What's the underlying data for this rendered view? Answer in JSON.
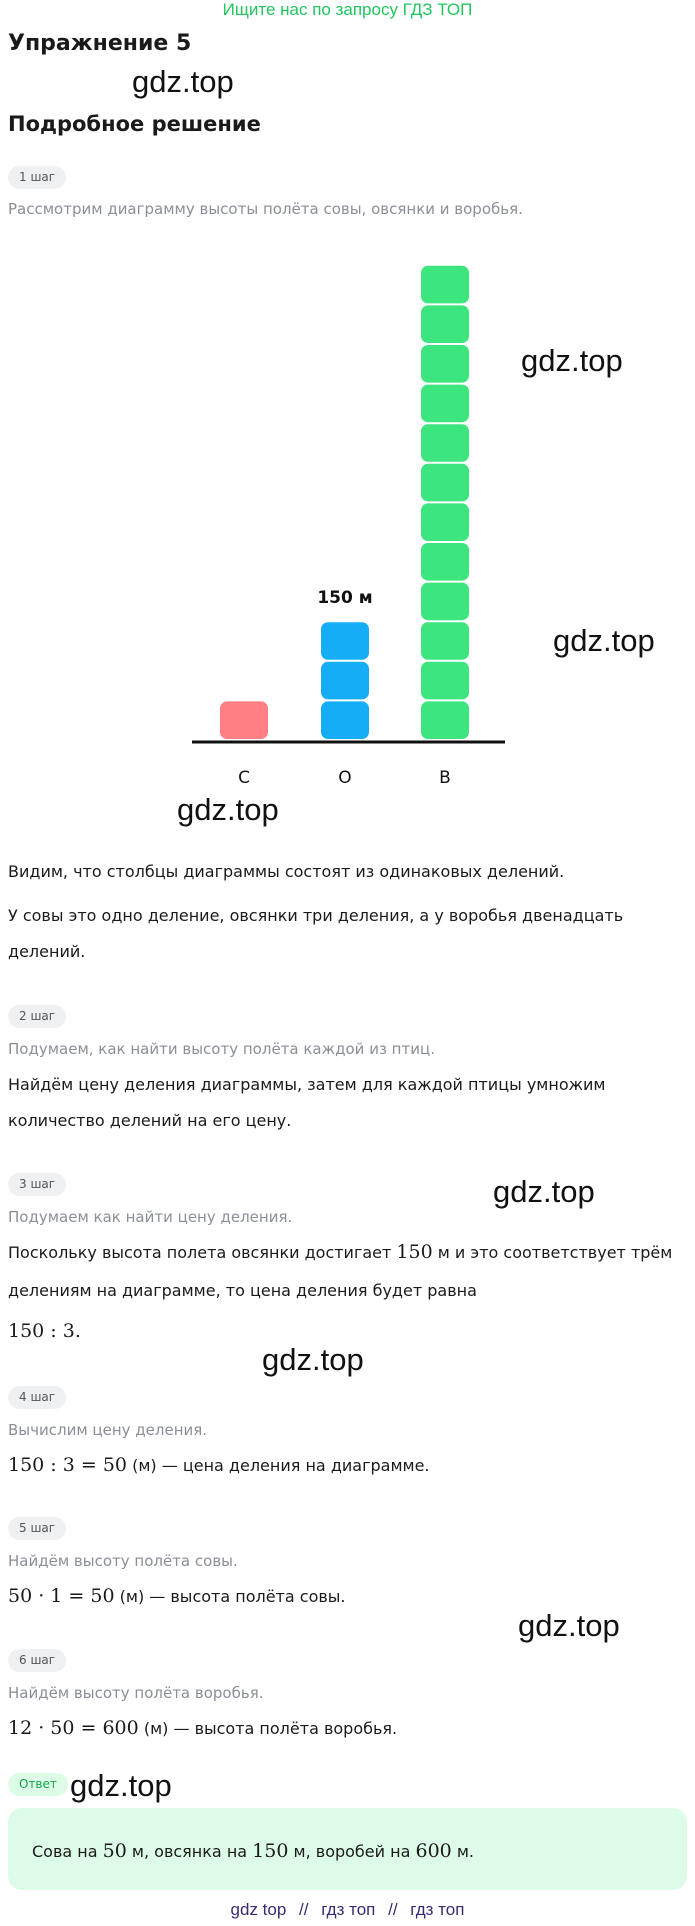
{
  "banner": "Ищите нас по запросу ГДЗ ТОП",
  "title": "Упражнение 5",
  "subtitle": "Подробное решение",
  "watermark": "gdz.top",
  "steps": [
    {
      "badge": "1 шаг",
      "hint": "Рассмотрим диаграмму высоты полёта совы, овсянки и воробья."
    },
    {
      "badge": "2 шаг",
      "hint": "Подумаем, как найти высоту полёта каждой из птиц."
    },
    {
      "badge": "3 шаг",
      "hint": "Подумаем как найти цену деления."
    },
    {
      "badge": "4 шаг",
      "hint": "Вычислим цену деления."
    },
    {
      "badge": "5 шаг",
      "hint": "Найдём высоту полёта совы."
    },
    {
      "badge": "6 шаг",
      "hint": "Найдём высоту полёта воробья."
    }
  ],
  "chart_data": {
    "type": "bar",
    "categories": [
      "С",
      "О",
      "В"
    ],
    "values": [
      1,
      3,
      12
    ],
    "annotation": "150 м",
    "annotation_category": "О",
    "colors": [
      "#ff7f84",
      "#16adf7",
      "#3ce57d"
    ],
    "unit_blocks": true
  },
  "texts": {
    "p1": "Видим, что столбцы диаграммы состоят из одинаковых делений.",
    "p2a": "У совы это одно деление, овсянки три деления, а у воробья двенадцать",
    "p2b": "делений.",
    "p3a": "Найдём цену деления диаграммы, затем для каждой птицы умножим",
    "p3b": "количество делений на его цену.",
    "p4a_pre": "Поскольку высота полета овсянки достигает ",
    "p4a_math": "150",
    "p4a_post": " м и это соответствует трём",
    "p4b": "делениям на диаграмме, то цена деления будет равна",
    "m1": "150 : 3.",
    "m2_math": "150 : 3 = 50",
    "m2_text": " (м) — цена деления на диаграмме.",
    "m3_math": "50 · 1 = 50",
    "m3_text": " (м) — высота полёта совы.",
    "m4_math": "12 · 50 = 600",
    "m4_text": " (м) — высота полёта воробья."
  },
  "answer": {
    "badge": "Ответ",
    "t1": "Сова на ",
    "v1": "50",
    "t2": " м, овсянка на ",
    "v2": "150",
    "t3": " м, воробей на ",
    "v3": "600",
    "t4": " м."
  },
  "footer": [
    "gdz top",
    "//",
    "гдз топ",
    "//",
    "гдз топ"
  ],
  "accent_color": "#22c55e"
}
